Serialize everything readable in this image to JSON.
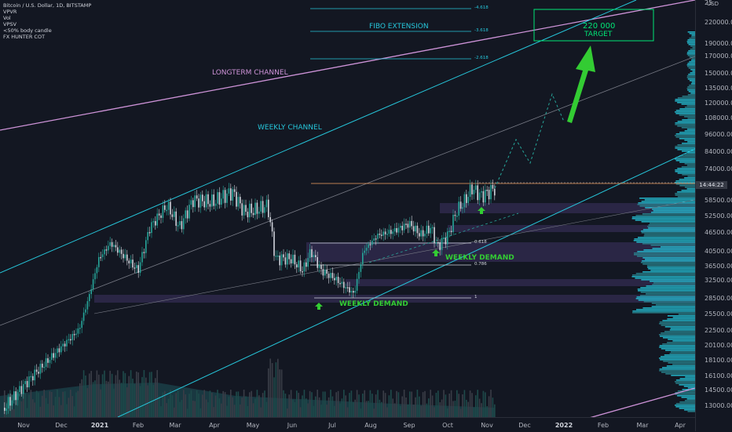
{
  "legend": {
    "symbol": "Bitcoin / U.S. Dollar, 1D, BITSTAMP",
    "indicators": [
      "VPVR",
      "Vol",
      "VPSV",
      "&lt;50% body candle",
      "FX HUNTER COT"
    ]
  },
  "annotations": {
    "fibo_extension": "FIBO EXTENSION",
    "longterm_channel": "LONGTERM CHANNEL",
    "weekly_channel": "WEEKLY CHANNEL",
    "target_value": "220 000",
    "target_label": "TARGET",
    "weekly_demand_1": "WEEKLY DEMAND",
    "weekly_demand_2": "WEEKLY DEMAND"
  },
  "fib_levels": [
    "-4.618",
    "-3.618",
    "-2.618",
    "0.618",
    "0.786",
    "1"
  ],
  "price_axis": {
    "currency": "USD",
    "labels": [
      "25",
      "220000.00",
      "190000.00",
      "170000.00",
      "150000.00",
      "135000.00",
      "120000.00",
      "108000.00",
      "96000.00",
      "84000.00",
      "74000.00",
      "58500.00",
      "52500.00",
      "46500.00",
      "40500.00",
      "36500.00",
      "32500.00",
      "28500.00",
      "25500.00",
      "22500.00",
      "20100.00",
      "18100.00",
      "16100.00",
      "14500.00",
      "13000.00"
    ],
    "current_price_tag": "14:44:22"
  },
  "time_axis": {
    "labels": [
      "Nov",
      "Dec",
      "2021",
      "Feb",
      "Mar",
      "Apr",
      "May",
      "Jun",
      "Jul",
      "Aug",
      "Sep",
      "Oct",
      "Nov",
      "Dec",
      "2022",
      "Feb",
      "Mar",
      "Apr"
    ],
    "bold": [
      "2021",
      "2022"
    ]
  },
  "colors": {
    "background": "#131722",
    "candle": "#26a69a",
    "channel": "#26c6da",
    "longterm": "#ce93d8",
    "demand_zone": "#2a2645",
    "target_box": "#00e676",
    "green_arrow": "#33cc33"
  }
}
